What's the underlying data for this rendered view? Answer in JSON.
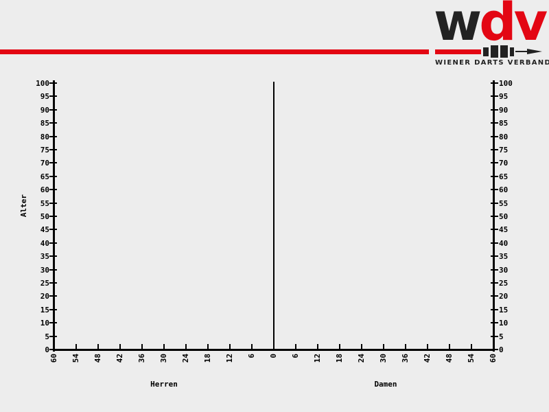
{
  "page": {
    "background_color": "#ededed"
  },
  "header": {
    "red_bar_color": "#e30613",
    "logo": {
      "letters": [
        {
          "text": "w",
          "color": "#222222"
        },
        {
          "text": "d",
          "color": "#e30613"
        },
        {
          "text": "v",
          "color": "#e30613"
        }
      ],
      "dark_color": "#222222",
      "subtitle": "WIENER DARTS VERBAND",
      "dart_icon_parts": [
        "barrel",
        "flight-segments",
        "shaft",
        "point"
      ]
    }
  },
  "chart_data": {
    "type": "bar",
    "subtype": "population-pyramid",
    "title": "",
    "grid": false,
    "legend": false,
    "axis_color": "#000000",
    "y_axis": {
      "label": "Alter",
      "min": 0,
      "max": 100,
      "step": 5,
      "tick_labels_top_to_bottom": [
        "100",
        "95",
        "90",
        "85",
        "80",
        "75",
        "70",
        "65",
        "60",
        "55",
        "50",
        "45",
        "40",
        "35",
        "30",
        "25",
        "20",
        "15",
        "10",
        "5",
        "0"
      ],
      "shown_on_both_sides": true
    },
    "x_axis": {
      "left_group_label": "Herren",
      "right_group_label": "Damen",
      "center_value": 0,
      "max_each_side": 60,
      "step": 6,
      "tick_labels_left_to_right": [
        "60",
        "54",
        "48",
        "42",
        "36",
        "30",
        "24",
        "18",
        "12",
        "6",
        "0",
        "6",
        "12",
        "18",
        "24",
        "30",
        "36",
        "42",
        "48",
        "54",
        "60"
      ],
      "tick_label_rotation_deg": -90
    },
    "series": [
      {
        "name": "Herren",
        "values": []
      },
      {
        "name": "Damen",
        "values": []
      }
    ]
  }
}
